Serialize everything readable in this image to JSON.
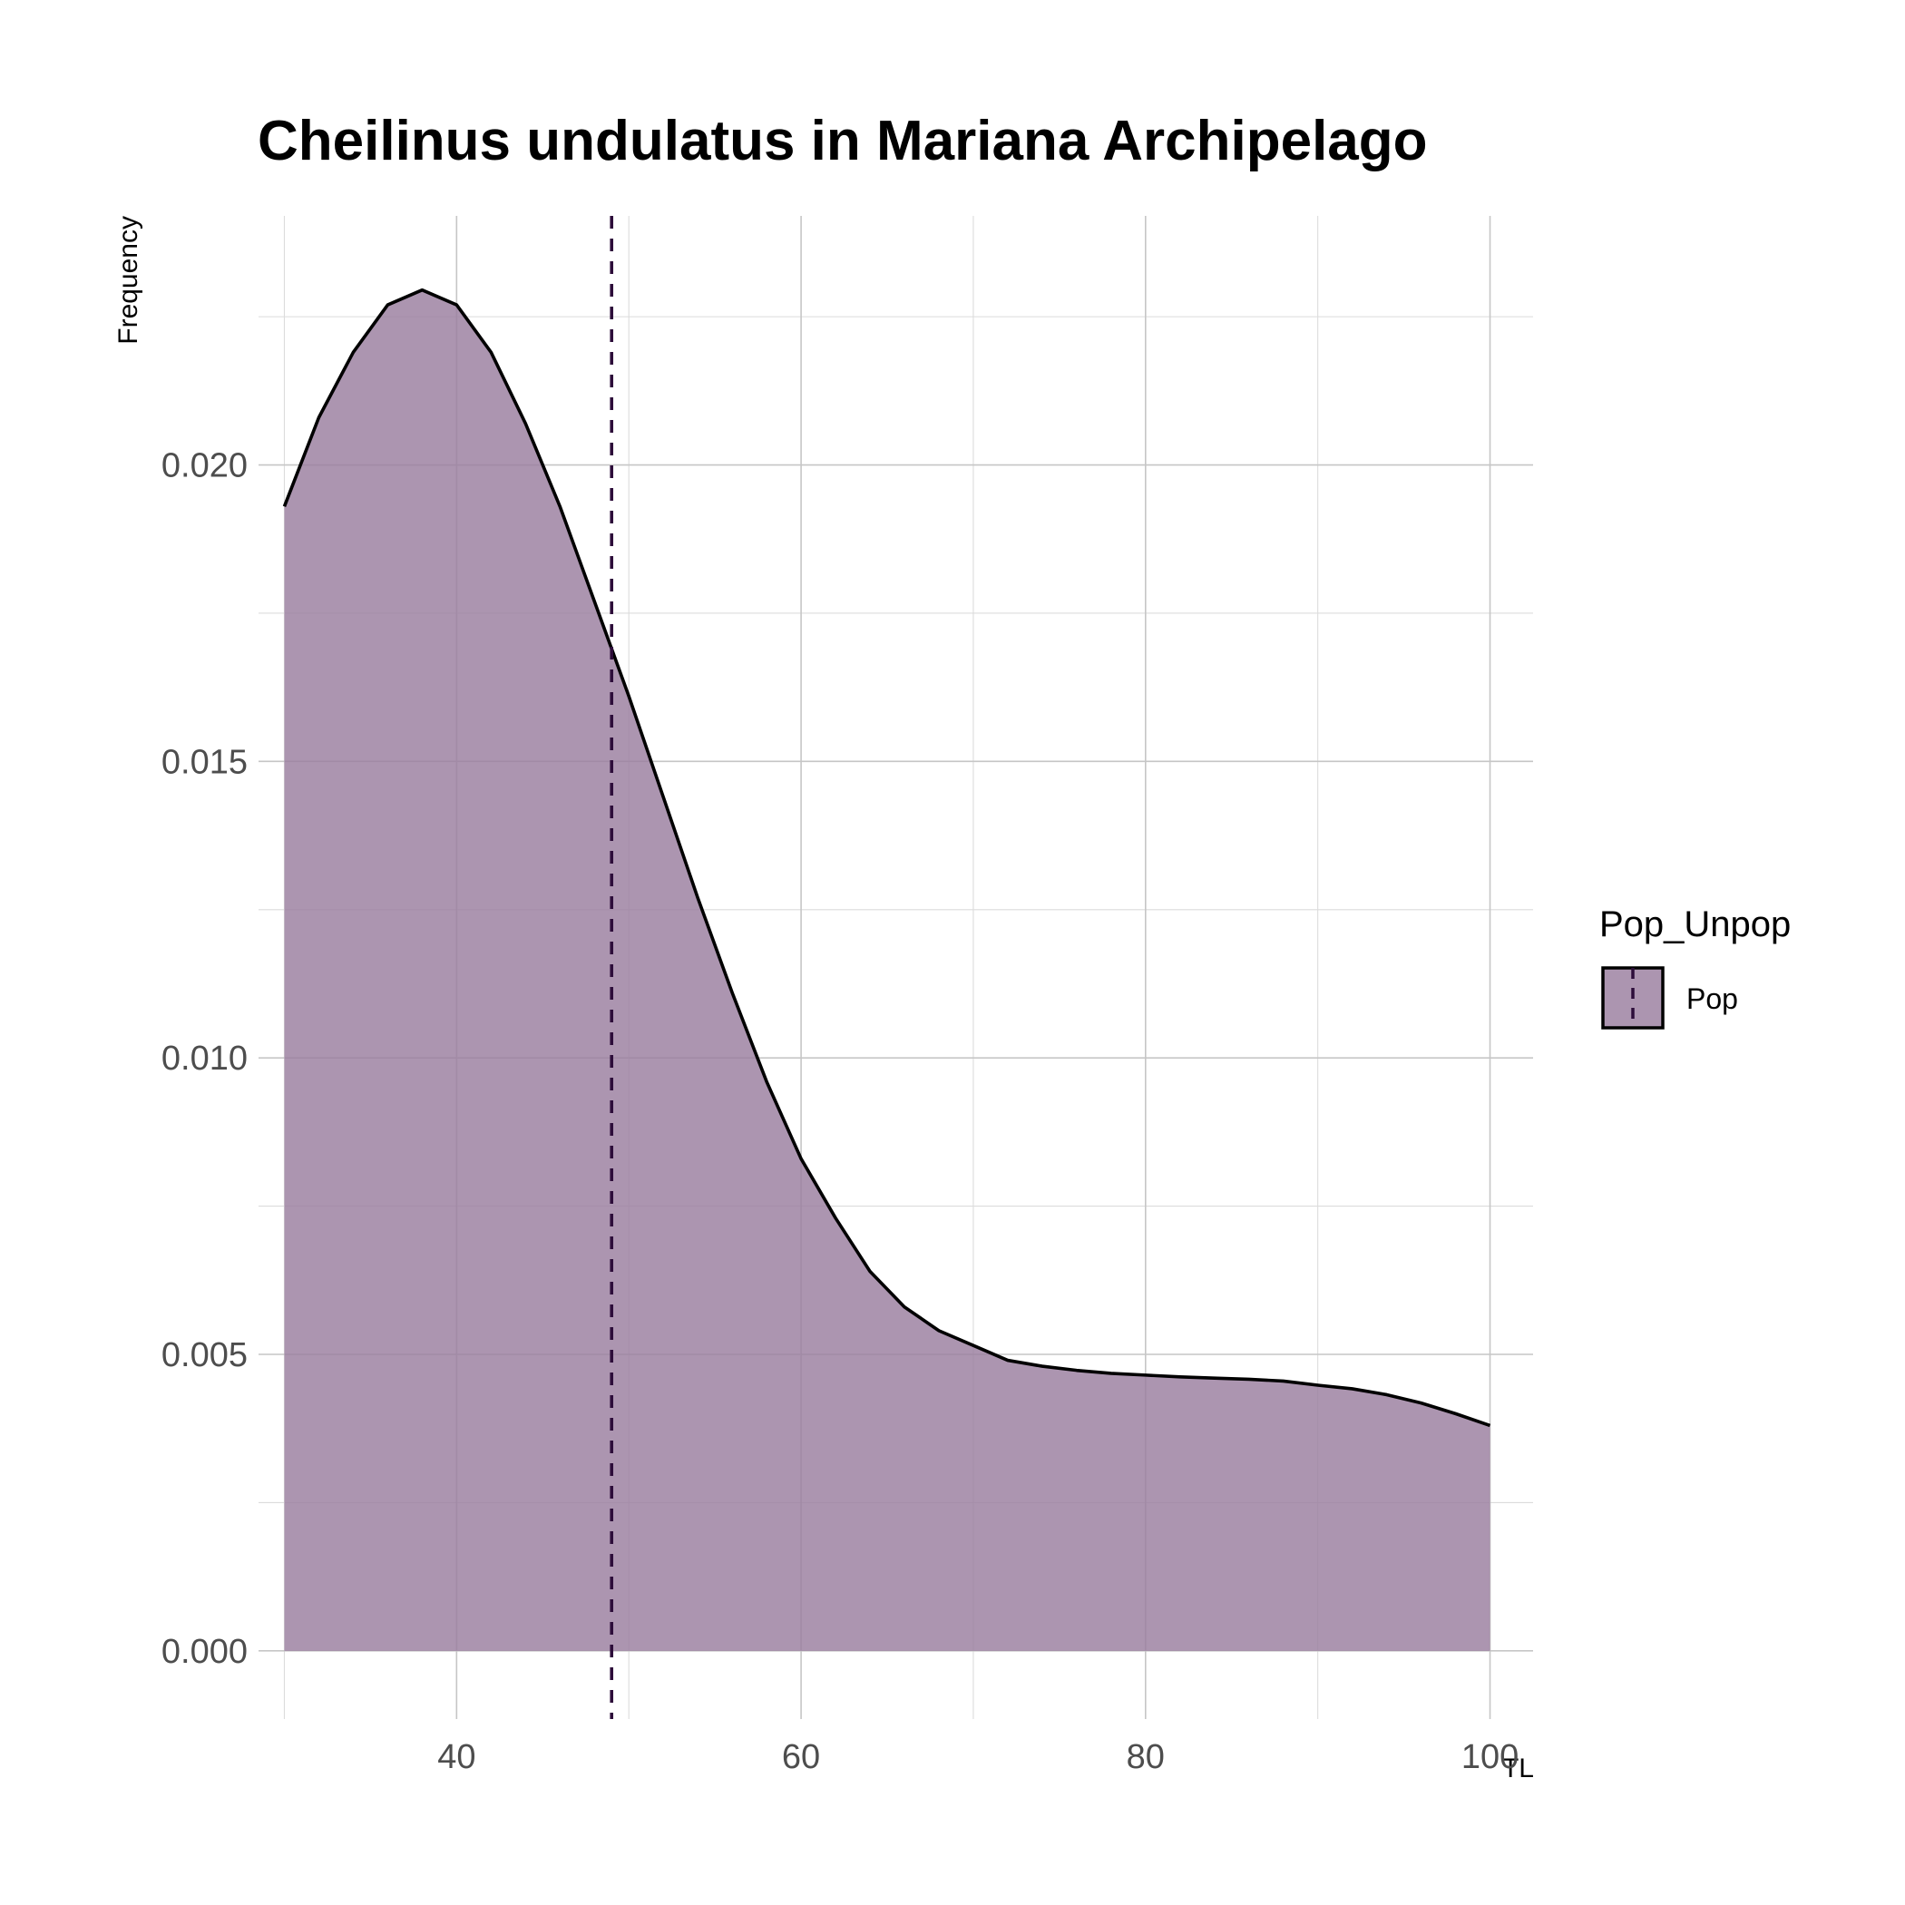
{
  "chart_data": {
    "type": "area",
    "title": "Cheilinus undulatus in Mariana Archipelago",
    "xlabel": "TL",
    "ylabel": "Frequency",
    "xlim": [
      28.5,
      102.5
    ],
    "ylim": [
      -0.00115,
      0.0242
    ],
    "x_ticks": [
      40,
      60,
      80,
      100
    ],
    "x_tick_labels": [
      "40",
      "60",
      "80",
      "100"
    ],
    "y_ticks": [
      0.0,
      0.005,
      0.01,
      0.015,
      0.02
    ],
    "y_tick_labels": [
      "0.000",
      "0.005",
      "0.010",
      "0.015",
      "0.020"
    ],
    "grid": true,
    "legend": {
      "title": "Pop_Unpop",
      "position": "right"
    },
    "series": [
      {
        "name": "Pop",
        "fill_color": "#9a7e9f",
        "line_color": "#000000",
        "points": [
          [
            30,
            0.0193
          ],
          [
            32,
            0.0208
          ],
          [
            34,
            0.0219
          ],
          [
            36,
            0.0227
          ],
          [
            38,
            0.02295
          ],
          [
            40,
            0.0227
          ],
          [
            42,
            0.0219
          ],
          [
            44,
            0.0207
          ],
          [
            46,
            0.0193
          ],
          [
            48,
            0.0177
          ],
          [
            50,
            0.0161
          ],
          [
            52,
            0.0144
          ],
          [
            54,
            0.0127
          ],
          [
            56,
            0.0111
          ],
          [
            58,
            0.0096
          ],
          [
            60,
            0.0083
          ],
          [
            62,
            0.0073
          ],
          [
            64,
            0.0064
          ],
          [
            66,
            0.0058
          ],
          [
            68,
            0.0054
          ],
          [
            70,
            0.00515
          ],
          [
            72,
            0.0049
          ],
          [
            74,
            0.0048
          ],
          [
            76,
            0.00473
          ],
          [
            78,
            0.00468
          ],
          [
            80,
            0.00465
          ],
          [
            82,
            0.00462
          ],
          [
            84,
            0.0046
          ],
          [
            86,
            0.00458
          ],
          [
            88,
            0.00455
          ],
          [
            90,
            0.00448
          ],
          [
            92,
            0.00442
          ],
          [
            94,
            0.00432
          ],
          [
            96,
            0.00418
          ],
          [
            98,
            0.004
          ],
          [
            100,
            0.0038
          ]
        ]
      }
    ],
    "vlines": [
      {
        "series": "Pop",
        "x": 49,
        "color": "#2d0d3a",
        "style": "dashed"
      }
    ]
  }
}
